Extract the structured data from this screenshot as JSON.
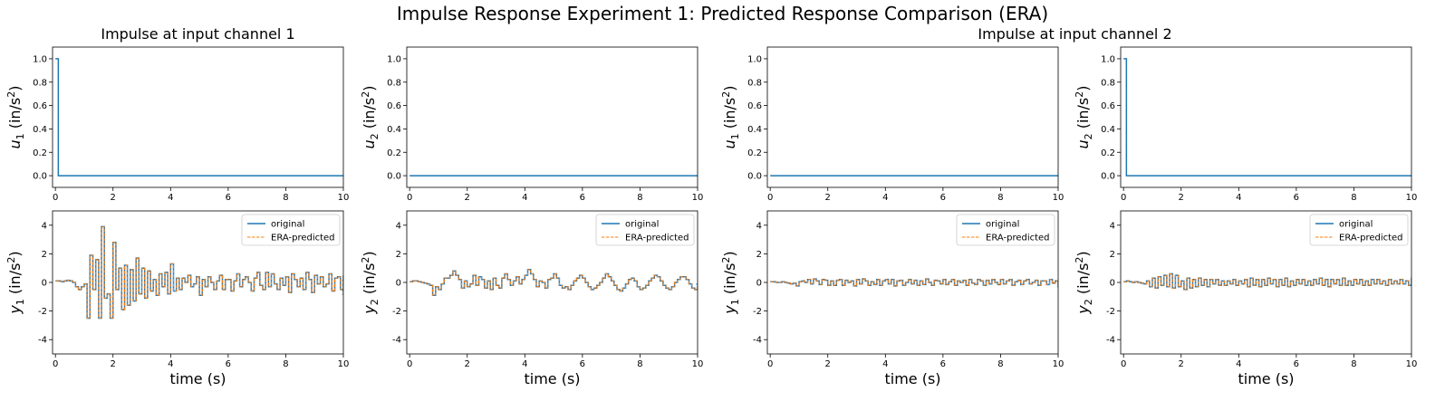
{
  "suptitle": "Impulse Response Experiment 1: Predicted Response Comparison (ERA)",
  "column_titles": [
    "Impulse at input channel 1",
    "Impulse at input channel 2"
  ],
  "colors": {
    "original": "#1f77b4",
    "predicted": "#ff7f0e",
    "axes": "#000000"
  },
  "legend_labels": [
    "original",
    "ERA-predicted"
  ],
  "chart_data": [
    {
      "type": "line",
      "title": "",
      "ylabel": "u_1 (in/s^2)",
      "xlabel": "",
      "xlim": [
        -0.1,
        10
      ],
      "ylim": [
        -0.1,
        1.1
      ],
      "xticks": [
        0,
        2,
        4,
        6,
        8,
        10
      ],
      "yticks": [
        0.0,
        0.2,
        0.4,
        0.6,
        0.8,
        1.0
      ],
      "series": [
        {
          "name": "",
          "kind": "impulse",
          "amplitude": 1.0,
          "dt": 0.1,
          "x_end": 10
        }
      ]
    },
    {
      "type": "line",
      "title": "",
      "ylabel": "u_2 (in/s^2)",
      "xlabel": "",
      "xlim": [
        -0.1,
        10
      ],
      "ylim": [
        -0.1,
        1.1
      ],
      "xticks": [
        0,
        2,
        4,
        6,
        8,
        10
      ],
      "yticks": [
        0.0,
        0.2,
        0.4,
        0.6,
        0.8,
        1.0
      ],
      "series": [
        {
          "name": "",
          "kind": "impulse",
          "amplitude": 0.0,
          "dt": 0.1,
          "x_end": 10
        }
      ]
    },
    {
      "type": "line",
      "title": "",
      "ylabel": "u_1 (in/s^2)",
      "xlabel": "",
      "xlim": [
        -0.1,
        10
      ],
      "ylim": [
        -0.1,
        1.1
      ],
      "xticks": [
        0,
        2,
        4,
        6,
        8,
        10
      ],
      "yticks": [
        0.0,
        0.2,
        0.4,
        0.6,
        0.8,
        1.0
      ],
      "series": [
        {
          "name": "",
          "kind": "impulse",
          "amplitude": 0.0,
          "dt": 0.1,
          "x_end": 10
        }
      ]
    },
    {
      "type": "line",
      "title": "",
      "ylabel": "u_2 (in/s^2)",
      "xlabel": "",
      "xlim": [
        -0.1,
        10
      ],
      "ylim": [
        -0.1,
        1.1
      ],
      "xticks": [
        0,
        2,
        4,
        6,
        8,
        10
      ],
      "yticks": [
        0.0,
        0.2,
        0.4,
        0.6,
        0.8,
        1.0
      ],
      "series": [
        {
          "name": "",
          "kind": "impulse",
          "amplitude": 1.0,
          "dt": 0.1,
          "x_end": 10
        }
      ]
    },
    {
      "type": "line",
      "title": "",
      "ylabel": "y_1 (in/s^2)",
      "xlabel": "time (s)",
      "xlim": [
        -0.1,
        10
      ],
      "ylim": [
        -5,
        5
      ],
      "xticks": [
        0,
        2,
        4,
        6,
        8,
        10
      ],
      "yticks": [
        -4,
        -2,
        0,
        2,
        4
      ],
      "legend": "top-right",
      "series": [
        {
          "name": "original",
          "dt": 0.1,
          "values": [
            0.1,
            0.1,
            0.05,
            0.1,
            0.15,
            0.1,
            0.0,
            -0.3,
            -0.5,
            -0.3,
            -0.1,
            -2.5,
            1.9,
            -0.5,
            1.6,
            -2.5,
            3.9,
            -1.1,
            -0.8,
            -2.5,
            2.8,
            -0.5,
            1.0,
            -1.9,
            1.2,
            -1.6,
            0.9,
            -1.3,
            1.7,
            -0.8,
            1.0,
            -1.1,
            0.8,
            -0.6,
            0.2,
            -0.9,
            0.6,
            -0.3,
            0.7,
            -0.8,
            1.3,
            -0.6,
            0.3,
            -0.5,
            0.3,
            0.0,
            0.5,
            -0.3,
            -0.1,
            0.4,
            -0.9,
            0.2,
            -0.3,
            0.4,
            0.0,
            -0.5,
            0.1,
            0.5,
            -0.5,
            0.2,
            0.2,
            -0.6,
            0.1,
            0.6,
            -0.3,
            0.2,
            0.4,
            0.0,
            -0.6,
            0.3,
            0.7,
            -0.2,
            -0.5,
            0.7,
            -0.3,
            0.6,
            -0.1,
            -0.5,
            0.3,
            -0.2,
            0.4,
            -0.7,
            0.6,
            0.2,
            -0.3,
            0.3,
            -0.5,
            0.7,
            0.2,
            -0.7,
            0.5,
            -0.1,
            0.4,
            -0.3,
            -0.1,
            0.6,
            -0.6,
            0.3,
            0.4,
            -0.5,
            0.5,
            -0.2,
            -0.6,
            0.3,
            0.1,
            -0.8,
            0.3,
            -0.4,
            0.2,
            0.5,
            0.0,
            -0.7,
            0.4,
            0.3,
            -0.5,
            0.6,
            -0.3,
            -0.2,
            0.5,
            -0.1,
            -0.7,
            0.3,
            -0.2,
            0.4,
            -0.2,
            -0.5,
            0.6,
            -0.2,
            0.3,
            -0.6,
            0.4,
            0.5,
            -0.2,
            -0.4,
            0.4,
            0.1,
            -0.6,
            0.2,
            0.4,
            -0.5,
            0.2,
            0.3,
            -0.6,
            0.6,
            -0.2,
            0.1,
            -0.7,
            0.3,
            0.5,
            -0.3,
            0.0,
            0.4,
            -0.4,
            0.2,
            -0.1,
            0.4,
            -0.5,
            0.3,
            -0.3,
            0.1,
            -0.5
          ]
        },
        {
          "name": "ERA-predicted",
          "same_as": "original"
        }
      ]
    },
    {
      "type": "line",
      "title": "",
      "ylabel": "y_2 (in/s^2)",
      "xlabel": "time (s)",
      "xlim": [
        -0.1,
        10
      ],
      "ylim": [
        -5,
        5
      ],
      "xticks": [
        0,
        2,
        4,
        6,
        8,
        10
      ],
      "yticks": [
        -4,
        -2,
        0,
        2,
        4
      ],
      "legend": "top-right",
      "series": [
        {
          "name": "original",
          "dt": 0.1,
          "values": [
            0.05,
            0.1,
            0.1,
            0.05,
            0.0,
            -0.05,
            -0.1,
            -0.2,
            -0.9,
            -0.3,
            -0.5,
            -0.1,
            0.3,
            0.3,
            0.5,
            0.8,
            0.5,
            0.2,
            -0.4,
            0.1,
            -0.3,
            -0.1,
            0.5,
            -0.2,
            0.4,
            0.2,
            -0.4,
            0.1,
            -0.5,
            0.3,
            -0.2,
            -0.4,
            0.3,
            0.6,
            0.2,
            -0.2,
            0.1,
            0.4,
            -0.1,
            0.2,
            0.5,
            0.9,
            0.6,
            0.2,
            -0.3,
            0.1,
            0.0,
            -0.4,
            0.2,
            0.3,
            0.6,
            0.3,
            -0.2,
            -0.4,
            -0.3,
            -0.5,
            -0.2,
            0.1,
            0.3,
            0.5,
            0.3,
            0.0,
            -0.3,
            -0.5,
            -0.4,
            -0.2,
            0.0,
            0.3,
            0.6,
            0.4,
            0.1,
            -0.2,
            -0.5,
            -0.6,
            -0.4,
            -0.1,
            0.2,
            0.3,
            0.1,
            -0.3,
            -0.5,
            -0.4,
            -0.2,
            0.1,
            0.3,
            0.5,
            0.4,
            0.1,
            -0.2,
            -0.4,
            -0.5,
            -0.3,
            0.0,
            0.2,
            0.4,
            0.4,
            0.2,
            -0.1,
            -0.4,
            -0.5,
            -0.3,
            -0.1,
            0.2,
            0.4,
            0.3,
            0.0,
            -0.3,
            -0.5,
            -0.4,
            -0.2,
            0.1,
            0.3,
            0.5,
            0.3,
            0.0,
            -0.3,
            -0.5,
            -0.4,
            -0.1,
            0.2,
            0.3,
            0.2,
            -0.1,
            -0.3,
            -0.5,
            -0.4,
            -0.2,
            0.1,
            0.3,
            0.3,
            0.1,
            -0.2,
            -0.4,
            -0.3,
            -0.1,
            0.1,
            0.3,
            0.4,
            0.2,
            0.0,
            -0.2,
            -0.4,
            -0.3,
            -0.1,
            0.2,
            0.3,
            0.2,
            0.0,
            -0.2,
            -0.3,
            -0.2,
            0.0,
            0.2,
            0.3,
            0.5,
            0.4,
            0.2,
            -0.1,
            -0.3,
            -0.5,
            -0.4,
            -0.5
          ]
        },
        {
          "name": "ERA-predicted",
          "same_as": "original"
        }
      ]
    },
    {
      "type": "line",
      "title": "",
      "ylabel": "y_1 (in/s^2)",
      "xlabel": "time (s)",
      "xlim": [
        -0.1,
        10
      ],
      "ylim": [
        -5,
        5
      ],
      "xticks": [
        0,
        2,
        4,
        6,
        8,
        10
      ],
      "yticks": [
        -4,
        -2,
        0,
        2,
        4
      ],
      "legend": "top-right",
      "series": [
        {
          "name": "original",
          "dt": 0.1,
          "values": [
            0.05,
            0.05,
            0.0,
            0.0,
            0.05,
            0.0,
            -0.05,
            -0.1,
            -0.05,
            -0.25,
            0.05,
            0.1,
            0.0,
            0.2,
            -0.1,
            0.25,
            0.1,
            -0.15,
            0.2,
            0.15,
            -0.2,
            0.1,
            -0.2,
            0.15,
            0.2,
            -0.2,
            0.15,
            0.0,
            0.1,
            -0.25,
            0.2,
            -0.1,
            0.25,
            0.1,
            -0.2,
            0.05,
            -0.15,
            0.2,
            -0.2,
            0.1,
            0.2,
            -0.1,
            0.2,
            -0.25,
            0.1,
            0.15,
            -0.2,
            0.0,
            0.2,
            -0.1,
            0.15,
            -0.2,
            0.1,
            -0.15,
            0.25,
            0.0,
            -0.2,
            0.15,
            0.1,
            -0.1,
            0.2,
            -0.15,
            0.05,
            0.2,
            -0.2,
            0.1,
            0.0,
            0.15,
            -0.2,
            0.2,
            -0.05,
            -0.15,
            0.2,
            0.1,
            -0.2,
            0.15,
            -0.1,
            0.2,
            0.0,
            -0.15,
            0.2,
            -0.1,
            0.1,
            0.2,
            -0.2,
            0.05,
            0.15,
            -0.15,
            0.1,
            0.2,
            -0.1,
            0.0,
            0.15,
            -0.2,
            0.1,
            0.1,
            -0.15,
            0.2,
            -0.05,
            0.1,
            -0.2,
            0.15,
            0.05,
            -0.1,
            0.2,
            -0.15,
            0.0,
            0.15,
            -0.15,
            0.1,
            0.05,
            -0.1,
            0.15,
            -0.15,
            0.05,
            0.1,
            -0.1,
            0.15,
            0.0,
            -0.15,
            0.1,
            0.05,
            -0.1,
            0.15,
            -0.1,
            0.05,
            0.1,
            -0.15,
            0.1,
            0.0,
            0.1,
            -0.1,
            0.1,
            -0.05,
            0.1,
            -0.1,
            0.05,
            0.1,
            -0.1,
            0.05,
            0.0,
            0.1,
            -0.1,
            0.05,
            0.05,
            -0.1,
            0.1,
            0.0,
            -0.05,
            0.1,
            -0.1,
            0.05,
            0.05,
            -0.1,
            0.1,
            0.0,
            -0.1,
            0.05,
            -0.05,
            -0.15
          ]
        },
        {
          "name": "ERA-predicted",
          "same_as": "original"
        }
      ]
    },
    {
      "type": "line",
      "title": "",
      "ylabel": "y_2 (in/s^2)",
      "xlabel": "time (s)",
      "xlim": [
        -0.1,
        10
      ],
      "ylim": [
        -5,
        5
      ],
      "xticks": [
        0,
        2,
        4,
        6,
        8,
        10
      ],
      "yticks": [
        -4,
        -2,
        0,
        2,
        4
      ],
      "legend": "top-right",
      "series": [
        {
          "name": "original",
          "dt": 0.1,
          "values": [
            0.05,
            0.1,
            0.05,
            0.0,
            0.05,
            0.0,
            -0.05,
            -0.1,
            0.1,
            -0.3,
            0.3,
            -0.4,
            0.4,
            -0.2,
            0.5,
            -0.3,
            0.6,
            -0.4,
            0.5,
            -0.3,
            0.1,
            -0.5,
            0.3,
            -0.4,
            0.2,
            -0.3,
            0.3,
            -0.2,
            0.2,
            -0.3,
            0.2,
            -0.1,
            0.2,
            -0.2,
            0.1,
            -0.2,
            0.1,
            -0.1,
            0.2,
            -0.2,
            0.1,
            -0.1,
            0.2,
            -0.3,
            0.3,
            -0.2,
            0.2,
            -0.3,
            0.2,
            -0.2,
            0.3,
            -0.1,
            0.2,
            -0.3,
            0.2,
            -0.2,
            0.3,
            -0.3,
            0.1,
            -0.2,
            0.2,
            -0.1,
            0.2,
            -0.2,
            0.1,
            -0.2,
            0.2,
            -0.1,
            0.3,
            -0.2,
            0.2,
            -0.3,
            0.2,
            -0.1,
            0.2,
            -0.2,
            0.3,
            -0.2,
            0.1,
            -0.2,
            0.2,
            -0.1,
            0.2,
            -0.2,
            0.1,
            -0.2,
            0.2,
            -0.1,
            0.2,
            -0.1,
            0.1,
            -0.2,
            0.2,
            -0.1,
            0.1,
            -0.1,
            0.2,
            -0.1,
            0.1,
            -0.2,
            0.2,
            -0.1,
            0.1,
            -0.1,
            0.2,
            -0.1,
            0.1,
            -0.1,
            0.1,
            -0.2,
            0.2,
            -0.1,
            0.1,
            -0.1,
            0.1,
            -0.1,
            0.2,
            -0.1,
            0.1,
            -0.1,
            0.1,
            -0.1,
            0.1,
            -0.1,
            0.1,
            -0.1,
            0.1,
            -0.1,
            0.1,
            -0.1,
            0.1,
            -0.1,
            0.1,
            -0.1,
            0.1,
            -0.05,
            0.1,
            -0.1,
            0.05,
            -0.1,
            0.1,
            -0.05,
            0.1,
            -0.1,
            0.05,
            -0.05,
            0.1,
            -0.1,
            0.05,
            -0.05,
            0.05,
            -0.1,
            0.05,
            -0.05,
            0.05,
            -0.1,
            0.05,
            -0.05,
            0.05,
            -0.1,
            -0.15
          ]
        },
        {
          "name": "ERA-predicted",
          "same_as": "original"
        }
      ]
    }
  ]
}
